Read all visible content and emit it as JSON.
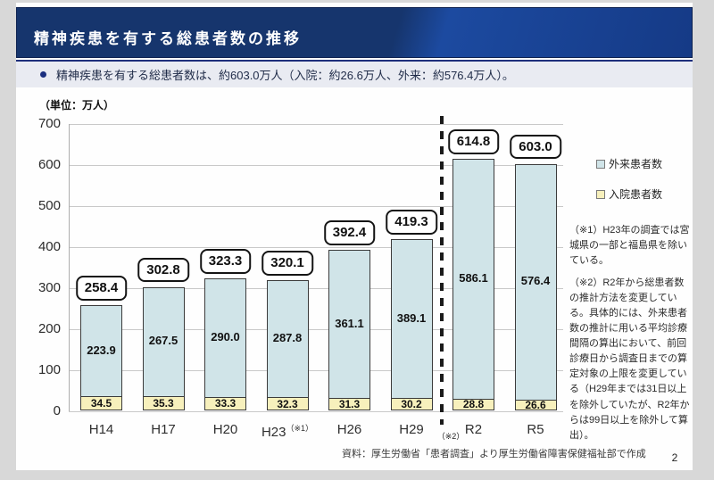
{
  "header": {
    "title": "精神疾患を有する総患者数の推移"
  },
  "summary": {
    "bullet_text": "精神疾患を有する総患者数は、約603.0万人（入院：約26.6万人、外来：約576.4万人）。"
  },
  "chart_data": {
    "type": "bar",
    "stacked": true,
    "unit_label": "（単位：万人）",
    "categories": [
      "H14",
      "H17",
      "H20",
      "H23",
      "H26",
      "H29",
      "R2",
      "R5"
    ],
    "category_notes": [
      "",
      "",
      "",
      "（※1）",
      "",
      "",
      "",
      ""
    ],
    "series": [
      {
        "name": "外来患者数",
        "color": "#d0e4e8",
        "values": [
          223.9,
          267.5,
          290.0,
          287.8,
          361.1,
          389.1,
          586.1,
          576.4
        ]
      },
      {
        "name": "入院患者数",
        "color": "#f7f0bc",
        "values": [
          34.5,
          35.3,
          33.3,
          32.3,
          31.3,
          30.2,
          28.8,
          26.6
        ]
      }
    ],
    "totals": [
      258.4,
      302.8,
      323.3,
      320.1,
      392.4,
      419.3,
      614.8,
      603.0
    ],
    "ylim": [
      0,
      700
    ],
    "ytick_interval": 100,
    "grid": true,
    "legend_position": "right",
    "legend": [
      "外来患者数",
      "入院患者数"
    ],
    "divider_after_category": "H29",
    "divider_note": "（※2）"
  },
  "notes": {
    "note1": "（※1）H23年の調査では宮城県の一部と福島県を除いている。",
    "note2": "（※2）R2年から総患者数の推計方法を変更している。具体的には、外来患者数の推計に用いる平均診療間隔の算出において、前回診療日から調査日までの算定対象の上限を変更している（H29年までは31日以上を除外していたが、R2年からは99日以上を除外して算出）。"
  },
  "footer": {
    "source": "資料：厚生労働省「患者調査」より厚生労働省障害保健福祉部で作成",
    "page_number": "2"
  }
}
